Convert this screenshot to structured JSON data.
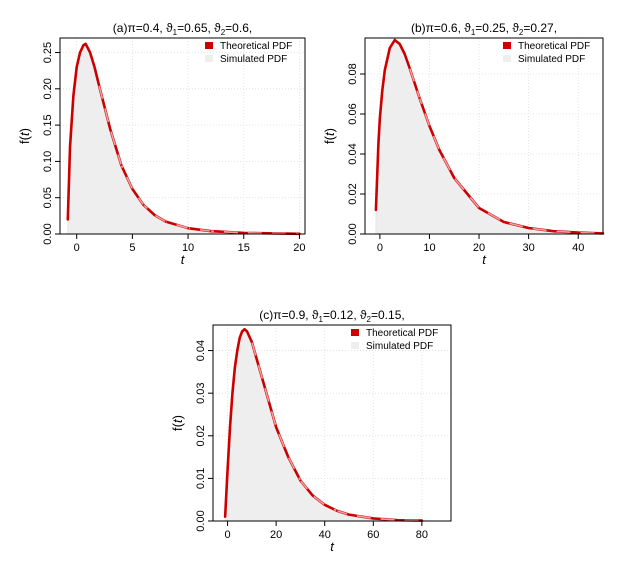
{
  "chart_data": [
    {
      "type": "area",
      "title": "(a)π=0.4, ϑ1=0.65, ϑ2=0.6,",
      "params": {
        "pi": 0.4,
        "theta1": 0.65,
        "theta2": 0.6
      },
      "xlabel": "t",
      "ylabel": "f(t)",
      "xlim": [
        -1.5,
        20.5
      ],
      "ylim": [
        0,
        0.27
      ],
      "xticks": [
        0,
        5,
        10,
        15,
        20
      ],
      "yticks": [
        0.0,
        0.05,
        0.1,
        0.15,
        0.2,
        0.25
      ],
      "ytick_labels": [
        "0.00",
        "0.05",
        "0.10",
        "0.15",
        "0.20",
        "0.25"
      ],
      "grid": true,
      "legend_position": "top-right",
      "series": [
        {
          "name": "Theoretical PDF",
          "style": "line",
          "color": "#cc0000",
          "x": [
            -0.8,
            -0.6,
            -0.3,
            0.0,
            0.3,
            0.6,
            0.8,
            1.2,
            1.6,
            2.0,
            2.5,
            3.0,
            3.5,
            4.0,
            5.0,
            6.0,
            7.0,
            8.0,
            10.0,
            12.0,
            15.0,
            20.0
          ],
          "y": [
            0.02,
            0.12,
            0.19,
            0.23,
            0.25,
            0.26,
            0.262,
            0.25,
            0.23,
            0.205,
            0.175,
            0.145,
            0.12,
            0.095,
            0.062,
            0.04,
            0.026,
            0.017,
            0.008,
            0.004,
            0.0015,
            0.0003
          ]
        },
        {
          "name": "Simulated PDF",
          "style": "area",
          "color": "#eeeeee",
          "x": [
            -0.8,
            -0.6,
            -0.3,
            0.0,
            0.3,
            0.6,
            0.8,
            1.2,
            1.6,
            2.0,
            2.5,
            3.0,
            3.5,
            4.0,
            5.0,
            6.0,
            7.0,
            8.0,
            10.0,
            12.0,
            15.0,
            20.0
          ],
          "y": [
            0.01,
            0.11,
            0.185,
            0.228,
            0.248,
            0.258,
            0.26,
            0.249,
            0.229,
            0.204,
            0.174,
            0.145,
            0.12,
            0.095,
            0.062,
            0.04,
            0.026,
            0.017,
            0.008,
            0.004,
            0.0015,
            0.0003
          ]
        }
      ]
    },
    {
      "type": "area",
      "title": "(b)π=0.6, ϑ1=0.25, ϑ2=0.27,",
      "params": {
        "pi": 0.6,
        "theta1": 0.25,
        "theta2": 0.27
      },
      "xlabel": "t",
      "ylabel": "f(t)",
      "xlim": [
        -3,
        45
      ],
      "ylim": [
        0,
        0.098
      ],
      "xticks": [
        0,
        10,
        20,
        30,
        40
      ],
      "yticks": [
        0.0,
        0.02,
        0.04,
        0.06,
        0.08
      ],
      "ytick_labels": [
        "0.00",
        "0.02",
        "0.04",
        "0.06",
        "0.08"
      ],
      "grid": true,
      "legend_position": "top-right",
      "series": [
        {
          "name": "Theoretical PDF",
          "style": "line",
          "color": "#cc0000",
          "x": [
            -0.8,
            -0.3,
            0.0,
            0.5,
            1.0,
            2.0,
            3.0,
            4.0,
            5.0,
            6.0,
            8.0,
            10.0,
            12.0,
            15.0,
            20.0,
            25.0,
            30.0,
            35.0,
            40.0,
            45.0
          ],
          "y": [
            0.012,
            0.045,
            0.058,
            0.072,
            0.082,
            0.093,
            0.097,
            0.095,
            0.09,
            0.083,
            0.068,
            0.054,
            0.042,
            0.028,
            0.013,
            0.006,
            0.003,
            0.0014,
            0.0007,
            0.0003
          ]
        },
        {
          "name": "Simulated PDF",
          "style": "area",
          "color": "#eeeeee",
          "x": [
            -0.8,
            -0.3,
            0.0,
            0.5,
            1.0,
            2.0,
            3.0,
            4.0,
            5.0,
            6.0,
            8.0,
            10.0,
            12.0,
            15.0,
            20.0,
            25.0,
            30.0,
            35.0,
            40.0,
            45.0
          ],
          "y": [
            0.008,
            0.042,
            0.056,
            0.07,
            0.081,
            0.092,
            0.096,
            0.095,
            0.09,
            0.083,
            0.068,
            0.054,
            0.042,
            0.028,
            0.013,
            0.006,
            0.003,
            0.0014,
            0.0007,
            0.0003
          ]
        }
      ]
    },
    {
      "type": "area",
      "title": "(c)π=0.9, ϑ1=0.12, ϑ2=0.15,",
      "params": {
        "pi": 0.9,
        "theta1": 0.12,
        "theta2": 0.15
      },
      "xlabel": "t",
      "ylabel": "f(t)",
      "xlim": [
        -6,
        92
      ],
      "ylim": [
        0,
        0.046
      ],
      "xticks": [
        0,
        20,
        40,
        60,
        80
      ],
      "yticks": [
        0.0,
        0.01,
        0.02,
        0.03,
        0.04
      ],
      "ytick_labels": [
        "0.00",
        "0.01",
        "0.02",
        "0.03",
        "0.04"
      ],
      "grid": true,
      "legend_position": "top-right",
      "series": [
        {
          "name": "Theoretical PDF",
          "style": "line",
          "color": "#cc0000",
          "x": [
            -1.0,
            0.0,
            1.0,
            2.0,
            3.0,
            4.0,
            5.0,
            6.0,
            7.0,
            8.0,
            10.0,
            12.0,
            15.0,
            18.0,
            20.0,
            25.0,
            30.0,
            35.0,
            40.0,
            45.0,
            50.0,
            60.0,
            70.0,
            80.0
          ],
          "y": [
            0.001,
            0.012,
            0.022,
            0.03,
            0.036,
            0.04,
            0.043,
            0.0445,
            0.045,
            0.0445,
            0.042,
            0.038,
            0.032,
            0.026,
            0.022,
            0.015,
            0.0095,
            0.006,
            0.0038,
            0.0024,
            0.0015,
            0.0006,
            0.0002,
            0.0001
          ]
        },
        {
          "name": "Simulated PDF",
          "style": "area",
          "color": "#eeeeee",
          "x": [
            -1.0,
            0.0,
            1.0,
            2.0,
            3.0,
            4.0,
            5.0,
            6.0,
            7.0,
            8.0,
            10.0,
            12.0,
            15.0,
            18.0,
            20.0,
            25.0,
            30.0,
            35.0,
            40.0,
            45.0,
            50.0,
            60.0,
            70.0,
            80.0,
            88.0
          ],
          "y": [
            0.0005,
            0.011,
            0.021,
            0.029,
            0.035,
            0.0395,
            0.0425,
            0.044,
            0.0448,
            0.0443,
            0.042,
            0.038,
            0.032,
            0.026,
            0.022,
            0.015,
            0.0095,
            0.006,
            0.0038,
            0.0024,
            0.0015,
            0.0006,
            0.0002,
            0.0001,
            0.0
          ]
        }
      ]
    }
  ]
}
